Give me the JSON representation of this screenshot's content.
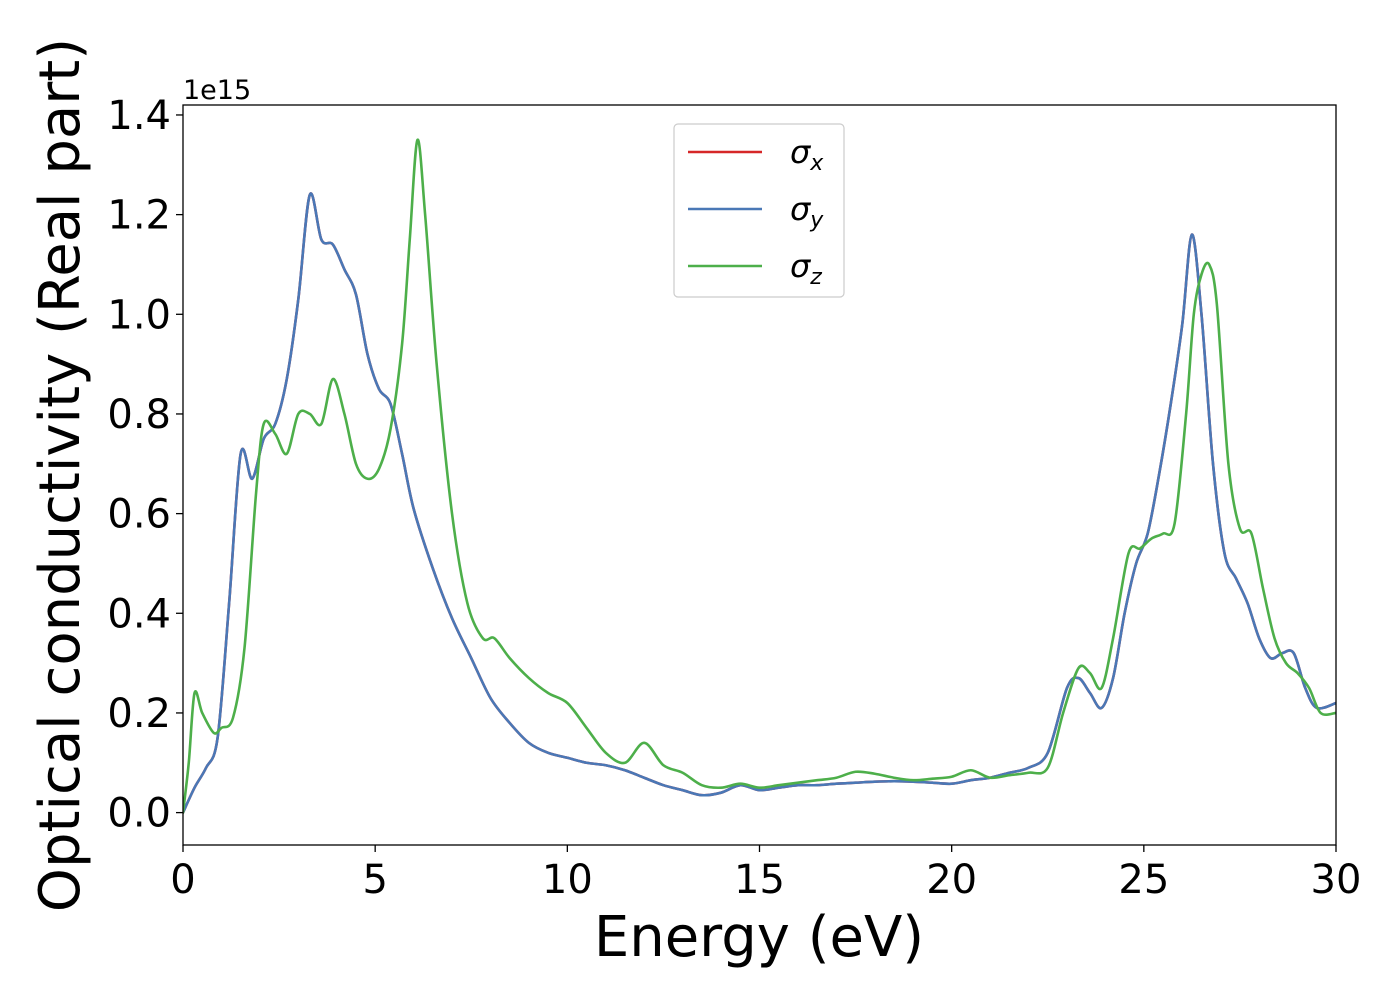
{
  "chart_data": {
    "type": "line",
    "xlabel": "Energy (eV)",
    "ylabel": "Optical conductivity (Real part)",
    "y_offset_label": "1e15",
    "xlim": [
      0,
      30
    ],
    "ylim": [
      -0.065,
      1.42
    ],
    "x_ticks": [
      0,
      5,
      10,
      15,
      20,
      25,
      30
    ],
    "y_ticks": [
      0.0,
      0.2,
      0.4,
      0.6,
      0.8,
      1.0,
      1.2,
      1.4
    ],
    "x_tick_labels": [
      "0",
      "5",
      "10",
      "15",
      "20",
      "25",
      "30"
    ],
    "y_tick_labels": [
      "0.0",
      "0.2",
      "0.4",
      "0.6",
      "0.8",
      "1.0",
      "1.2",
      "1.4"
    ],
    "grid": false,
    "legend_position": "top-center",
    "series": [
      {
        "name": "σx",
        "symbol": "σ",
        "subscript": "x",
        "color": "#d62728",
        "x": [
          0,
          0.3,
          0.6,
          0.9,
          1.2,
          1.5,
          1.8,
          2.1,
          2.4,
          2.7,
          3.0,
          3.3,
          3.6,
          3.9,
          4.2,
          4.5,
          4.8,
          5.1,
          5.4,
          5.7,
          6.0,
          6.5,
          7.0,
          7.5,
          8.0,
          8.5,
          9.0,
          9.5,
          10.0,
          10.5,
          11.0,
          11.5,
          12.0,
          12.5,
          13.0,
          13.5,
          14.0,
          14.5,
          15.0,
          15.5,
          16.0,
          16.5,
          17.0,
          17.5,
          18.0,
          18.5,
          19.0,
          19.5,
          20.0,
          20.5,
          21.0,
          21.5,
          22.0,
          22.5,
          23.0,
          23.3,
          23.6,
          23.9,
          24.2,
          24.5,
          24.8,
          25.1,
          25.4,
          25.7,
          26.0,
          26.25,
          26.5,
          26.8,
          27.1,
          27.4,
          27.7,
          28.0,
          28.3,
          28.6,
          28.9,
          29.2,
          29.5,
          30.0
        ],
        "y": [
          0.0,
          0.05,
          0.09,
          0.15,
          0.42,
          0.72,
          0.67,
          0.75,
          0.78,
          0.87,
          1.03,
          1.24,
          1.15,
          1.14,
          1.09,
          1.04,
          0.92,
          0.85,
          0.82,
          0.72,
          0.61,
          0.49,
          0.39,
          0.31,
          0.23,
          0.18,
          0.14,
          0.12,
          0.11,
          0.1,
          0.095,
          0.085,
          0.07,
          0.055,
          0.045,
          0.035,
          0.04,
          0.055,
          0.045,
          0.05,
          0.055,
          0.055,
          0.058,
          0.06,
          0.062,
          0.063,
          0.062,
          0.06,
          0.058,
          0.065,
          0.07,
          0.08,
          0.09,
          0.12,
          0.25,
          0.27,
          0.24,
          0.21,
          0.27,
          0.4,
          0.5,
          0.56,
          0.68,
          0.82,
          0.98,
          1.16,
          1.0,
          0.7,
          0.52,
          0.47,
          0.42,
          0.35,
          0.31,
          0.32,
          0.32,
          0.25,
          0.21,
          0.22
        ]
      },
      {
        "name": "σy",
        "symbol": "σ",
        "subscript": "y",
        "color": "#4a78b6",
        "x": [
          0,
          0.3,
          0.6,
          0.9,
          1.2,
          1.5,
          1.8,
          2.1,
          2.4,
          2.7,
          3.0,
          3.3,
          3.6,
          3.9,
          4.2,
          4.5,
          4.8,
          5.1,
          5.4,
          5.7,
          6.0,
          6.5,
          7.0,
          7.5,
          8.0,
          8.5,
          9.0,
          9.5,
          10.0,
          10.5,
          11.0,
          11.5,
          12.0,
          12.5,
          13.0,
          13.5,
          14.0,
          14.5,
          15.0,
          15.5,
          16.0,
          16.5,
          17.0,
          17.5,
          18.0,
          18.5,
          19.0,
          19.5,
          20.0,
          20.5,
          21.0,
          21.5,
          22.0,
          22.5,
          23.0,
          23.3,
          23.6,
          23.9,
          24.2,
          24.5,
          24.8,
          25.1,
          25.4,
          25.7,
          26.0,
          26.25,
          26.5,
          26.8,
          27.1,
          27.4,
          27.7,
          28.0,
          28.3,
          28.6,
          28.9,
          29.2,
          29.5,
          30.0
        ],
        "y": [
          0.0,
          0.05,
          0.09,
          0.15,
          0.42,
          0.72,
          0.67,
          0.75,
          0.78,
          0.87,
          1.03,
          1.24,
          1.15,
          1.14,
          1.09,
          1.04,
          0.92,
          0.85,
          0.82,
          0.72,
          0.61,
          0.49,
          0.39,
          0.31,
          0.23,
          0.18,
          0.14,
          0.12,
          0.11,
          0.1,
          0.095,
          0.085,
          0.07,
          0.055,
          0.045,
          0.035,
          0.04,
          0.055,
          0.045,
          0.05,
          0.055,
          0.055,
          0.058,
          0.06,
          0.062,
          0.063,
          0.062,
          0.06,
          0.058,
          0.065,
          0.07,
          0.08,
          0.09,
          0.12,
          0.25,
          0.27,
          0.24,
          0.21,
          0.27,
          0.4,
          0.5,
          0.56,
          0.68,
          0.82,
          0.98,
          1.16,
          1.0,
          0.7,
          0.52,
          0.47,
          0.42,
          0.35,
          0.31,
          0.32,
          0.32,
          0.25,
          0.21,
          0.22
        ]
      },
      {
        "name": "σz",
        "symbol": "σ",
        "subscript": "z",
        "color": "#4daf4a",
        "x": [
          0,
          0.15,
          0.3,
          0.5,
          0.8,
          1.0,
          1.3,
          1.6,
          1.9,
          2.1,
          2.4,
          2.7,
          3.0,
          3.3,
          3.6,
          3.9,
          4.2,
          4.5,
          4.8,
          5.1,
          5.4,
          5.7,
          5.9,
          6.1,
          6.3,
          6.6,
          7.0,
          7.4,
          7.8,
          8.1,
          8.5,
          9.0,
          9.5,
          10.0,
          10.5,
          11.0,
          11.5,
          12.0,
          12.5,
          13.0,
          13.5,
          14.0,
          14.5,
          15.0,
          15.5,
          16.0,
          16.5,
          17.0,
          17.5,
          18.0,
          18.5,
          19.0,
          19.5,
          20.0,
          20.5,
          21.0,
          21.5,
          22.0,
          22.5,
          22.9,
          23.3,
          23.6,
          23.9,
          24.2,
          24.6,
          24.9,
          25.2,
          25.5,
          25.8,
          26.1,
          26.3,
          26.5,
          26.7,
          26.9,
          27.2,
          27.5,
          27.8,
          28.1,
          28.4,
          28.7,
          29.0,
          29.3,
          29.6,
          30.0
        ],
        "y": [
          0.0,
          0.1,
          0.24,
          0.2,
          0.16,
          0.17,
          0.19,
          0.33,
          0.64,
          0.78,
          0.76,
          0.72,
          0.8,
          0.8,
          0.78,
          0.87,
          0.8,
          0.7,
          0.67,
          0.69,
          0.77,
          0.94,
          1.15,
          1.35,
          1.2,
          0.9,
          0.6,
          0.42,
          0.35,
          0.35,
          0.31,
          0.27,
          0.24,
          0.22,
          0.17,
          0.12,
          0.1,
          0.14,
          0.095,
          0.08,
          0.055,
          0.05,
          0.058,
          0.05,
          0.055,
          0.06,
          0.065,
          0.07,
          0.082,
          0.078,
          0.07,
          0.065,
          0.068,
          0.072,
          0.085,
          0.07,
          0.075,
          0.08,
          0.09,
          0.2,
          0.29,
          0.28,
          0.25,
          0.35,
          0.52,
          0.53,
          0.55,
          0.56,
          0.58,
          0.8,
          1.0,
          1.08,
          1.1,
          1.02,
          0.7,
          0.57,
          0.56,
          0.45,
          0.35,
          0.3,
          0.28,
          0.25,
          0.2,
          0.2
        ]
      }
    ]
  }
}
